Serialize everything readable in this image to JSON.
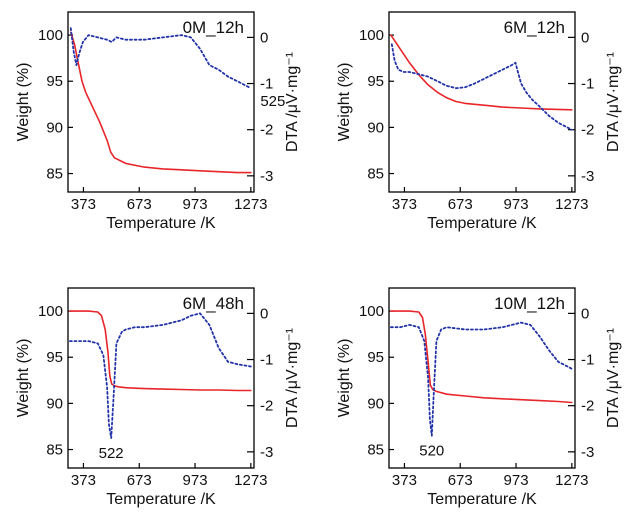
{
  "chart_data": [
    {
      "type": "line",
      "title": "0M_12h",
      "annotation": "525",
      "xlabel": "Temperature /K",
      "ylabel_left": "Weight (%)",
      "ylabel_right": "DTA /μV·mg⁻¹",
      "xlim": [
        290,
        1290
      ],
      "ylim_left": [
        83,
        102.5
      ],
      "ylim_right": [
        -3.35,
        0.55
      ],
      "xticks": [
        373,
        673,
        973,
        1273
      ],
      "yticks_left": [
        85,
        90,
        95,
        100
      ],
      "yticks_right": [
        -3,
        -2,
        -1,
        0
      ],
      "series": [
        {
          "axis": "left",
          "color": "#e8262a",
          "style": "solid",
          "x": [
            305,
            325,
            345,
            365,
            385,
            420,
            460,
            500,
            520,
            540,
            600,
            700,
            800,
            900,
            1000,
            1100,
            1200,
            1273
          ],
          "y": [
            100.3,
            99.0,
            97.0,
            95.0,
            93.8,
            92.3,
            90.6,
            88.6,
            87.3,
            86.7,
            86.1,
            85.7,
            85.5,
            85.4,
            85.3,
            85.2,
            85.1,
            85.1
          ]
        },
        {
          "axis": "right",
          "color": "#2233aa",
          "style": "dotted",
          "x": [
            305,
            320,
            335,
            350,
            370,
            400,
            450,
            500,
            525,
            550,
            600,
            700,
            800,
            900,
            950,
            1000,
            1050,
            1100,
            1150,
            1200,
            1273
          ],
          "y": [
            0.2,
            -0.3,
            -0.6,
            -0.35,
            -0.1,
            0.05,
            0.0,
            -0.05,
            -0.1,
            0.0,
            -0.05,
            -0.05,
            0.0,
            0.05,
            0.0,
            -0.25,
            -0.6,
            -0.7,
            -0.85,
            -0.95,
            -1.1
          ]
        }
      ]
    },
    {
      "type": "line",
      "title": "6M_12h",
      "xlabel": "Temperature /K",
      "ylabel_left": "Weight (%)",
      "ylabel_right": "DTA /μV·mg⁻¹",
      "xlim": [
        290,
        1290
      ],
      "ylim_left": [
        83,
        102.5
      ],
      "ylim_right": [
        -3.35,
        0.55
      ],
      "xticks": [
        373,
        673,
        973,
        1273
      ],
      "yticks_left": [
        85,
        90,
        95,
        100
      ],
      "yticks_right": [
        -3,
        -2,
        -1,
        0
      ],
      "series": [
        {
          "axis": "left",
          "color": "#e8262a",
          "style": "solid",
          "x": [
            300,
            350,
            400,
            450,
            500,
            550,
            600,
            650,
            700,
            800,
            900,
            1000,
            1100,
            1200,
            1273
          ],
          "y": [
            100.0,
            98.5,
            97.0,
            95.7,
            94.6,
            93.8,
            93.2,
            92.8,
            92.6,
            92.4,
            92.2,
            92.1,
            92.0,
            91.95,
            91.9
          ]
        },
        {
          "axis": "right",
          "color": "#2233aa",
          "style": "dotted",
          "x": [
            305,
            320,
            340,
            370,
            400,
            450,
            500,
            550,
            600,
            650,
            700,
            750,
            800,
            850,
            900,
            950,
            970,
            980,
            1000,
            1030,
            1060,
            1100,
            1150,
            1200,
            1273
          ],
          "y": [
            -0.15,
            -0.5,
            -0.7,
            -0.75,
            -0.75,
            -0.8,
            -0.85,
            -0.95,
            -1.05,
            -1.1,
            -1.08,
            -1.0,
            -0.9,
            -0.8,
            -0.7,
            -0.6,
            -0.55,
            -0.7,
            -1.0,
            -1.2,
            -1.35,
            -1.5,
            -1.7,
            -1.85,
            -2.0
          ]
        }
      ]
    },
    {
      "type": "line",
      "title": "6M_48h",
      "annotation": "522",
      "xlabel": "Temperature /K",
      "ylabel_left": "Weight (%)",
      "ylabel_right": "DTA /μV·mg⁻¹",
      "xlim": [
        290,
        1290
      ],
      "ylim_left": [
        83,
        102.5
      ],
      "ylim_right": [
        -3.35,
        0.55
      ],
      "xticks": [
        373,
        673,
        973,
        1273
      ],
      "yticks_left": [
        85,
        90,
        95,
        100
      ],
      "yticks_right": [
        -3,
        -2,
        -1,
        0
      ],
      "series": [
        {
          "axis": "left",
          "color": "#e8262a",
          "style": "solid",
          "x": [
            300,
            400,
            450,
            470,
            490,
            505,
            515,
            525,
            540,
            560,
            600,
            700,
            800,
            900,
            1000,
            1100,
            1200,
            1273
          ],
          "y": [
            100.0,
            100.0,
            99.9,
            99.5,
            98.0,
            95.5,
            93.0,
            92.1,
            91.9,
            91.8,
            91.7,
            91.6,
            91.55,
            91.5,
            91.45,
            91.45,
            91.4,
            91.4
          ]
        },
        {
          "axis": "right",
          "color": "#2233aa",
          "style": "dotted",
          "x": [
            300,
            350,
            400,
            450,
            480,
            500,
            510,
            522,
            535,
            550,
            580,
            600,
            650,
            700,
            800,
            900,
            950,
            1000,
            1050,
            1100,
            1150,
            1200,
            1273
          ],
          "y": [
            -0.6,
            -0.6,
            -0.6,
            -0.65,
            -0.9,
            -1.6,
            -2.4,
            -2.7,
            -1.8,
            -0.65,
            -0.4,
            -0.35,
            -0.3,
            -0.3,
            -0.25,
            -0.15,
            -0.05,
            0.0,
            -0.25,
            -0.75,
            -1.05,
            -1.1,
            -1.15
          ]
        }
      ]
    },
    {
      "type": "line",
      "title": "10M_12h",
      "annotation": "520",
      "xlabel": "Temperature /K",
      "ylabel_left": "Weight (%)",
      "ylabel_right": "DTA /μV·mg⁻¹",
      "xlim": [
        290,
        1290
      ],
      "ylim_left": [
        83,
        102.5
      ],
      "ylim_right": [
        -3.35,
        0.55
      ],
      "xticks": [
        373,
        673,
        973,
        1273
      ],
      "yticks_left": [
        85,
        90,
        95,
        100
      ],
      "yticks_right": [
        -3,
        -2,
        -1,
        0
      ],
      "series": [
        {
          "axis": "left",
          "color": "#e8262a",
          "style": "solid",
          "x": [
            300,
            400,
            450,
            470,
            485,
            500,
            512,
            525,
            545,
            600,
            700,
            800,
            900,
            1000,
            1100,
            1200,
            1273
          ],
          "y": [
            100.0,
            100.0,
            99.9,
            99.3,
            97.5,
            94.5,
            92.0,
            91.5,
            91.3,
            91.0,
            90.8,
            90.6,
            90.5,
            90.4,
            90.3,
            90.2,
            90.1
          ]
        },
        {
          "axis": "right",
          "color": "#2233aa",
          "style": "dotted",
          "x": [
            300,
            350,
            400,
            450,
            480,
            500,
            510,
            520,
            530,
            545,
            570,
            600,
            700,
            800,
            900,
            1000,
            1050,
            1100,
            1150,
            1200,
            1250,
            1273
          ],
          "y": [
            -0.3,
            -0.3,
            -0.25,
            -0.3,
            -0.6,
            -1.4,
            -2.3,
            -2.65,
            -1.8,
            -0.6,
            -0.35,
            -0.3,
            -0.35,
            -0.35,
            -0.3,
            -0.2,
            -0.25,
            -0.5,
            -0.8,
            -1.05,
            -1.15,
            -1.2
          ]
        }
      ]
    }
  ]
}
